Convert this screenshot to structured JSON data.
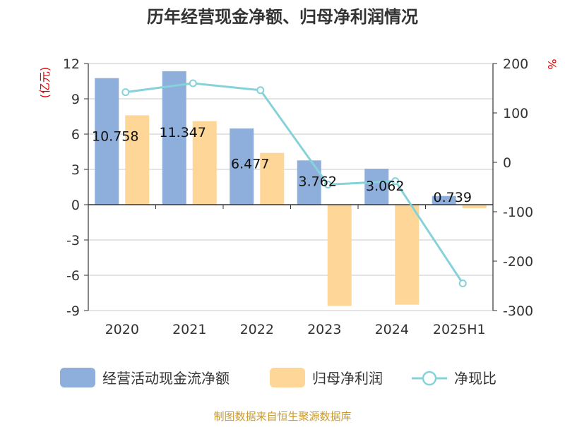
{
  "chart_data": {
    "type": "bar",
    "title": "历年经营现金净额、归母净利润情况",
    "categories": [
      "2020",
      "2021",
      "2022",
      "2023",
      "2024",
      "2025H1"
    ],
    "left_axis": {
      "unit": "(亿元)",
      "ticks": [
        12,
        9,
        6,
        3,
        0,
        -3,
        -6,
        -9
      ],
      "ylim": [
        -9,
        12
      ]
    },
    "right_axis": {
      "unit": "%",
      "ticks": [
        200,
        100,
        0,
        -100,
        -200,
        -300
      ],
      "ylim": [
        -300,
        200
      ]
    },
    "series": [
      {
        "name": "经营活动现金流净额",
        "kind": "bar",
        "axis": "left",
        "color": "#8eaedb",
        "values": [
          10.758,
          11.347,
          6.477,
          3.762,
          3.062,
          0.739
        ],
        "labels": [
          "10.758",
          "11.347",
          "6.477",
          "3.762",
          "3.062",
          "0.739"
        ]
      },
      {
        "name": "归母净利润",
        "kind": "bar",
        "axis": "left",
        "color": "#fdd698",
        "values": [
          7.6,
          7.1,
          4.4,
          -8.6,
          -8.5,
          -0.3
        ]
      },
      {
        "name": "净现比",
        "kind": "line",
        "axis": "right",
        "color": "#86d2da",
        "values": [
          142,
          160,
          146,
          -45,
          -38,
          -245
        ]
      }
    ],
    "grid": true,
    "legend_position": "bottom"
  },
  "source": "制图数据来自恒生聚源数据库"
}
